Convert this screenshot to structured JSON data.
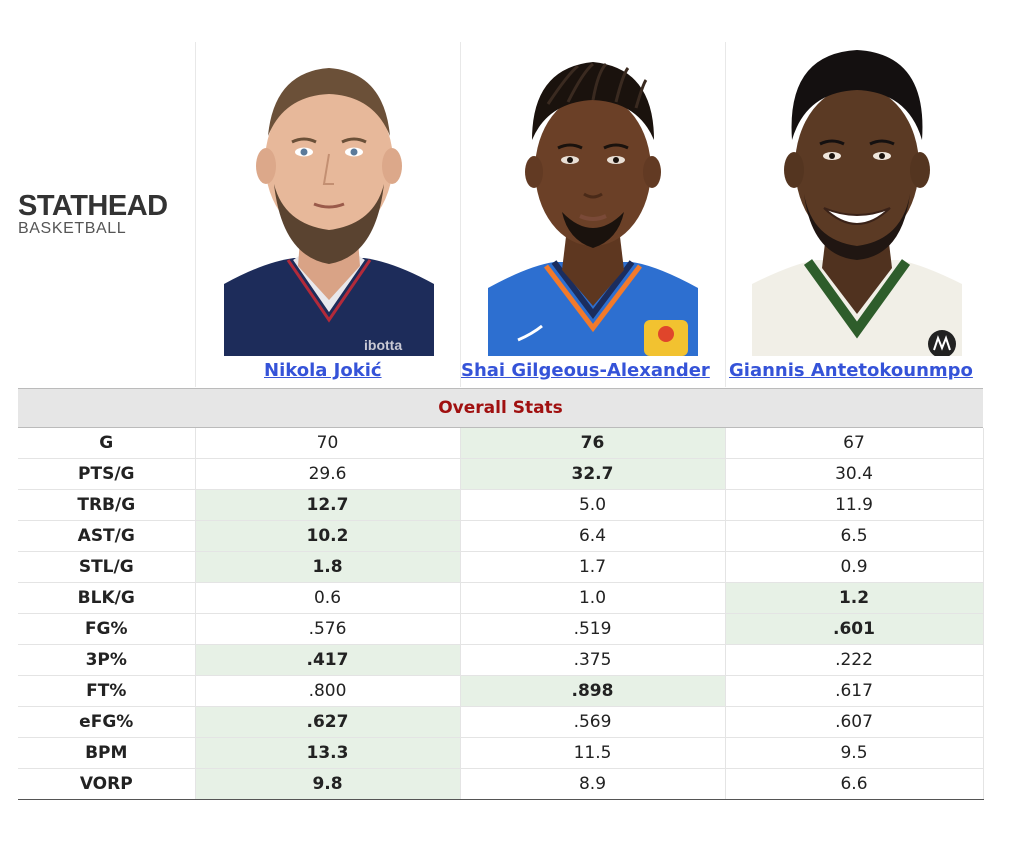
{
  "logo": {
    "top": "STATHEAD",
    "bottom": "BASKETBALL"
  },
  "players": [
    {
      "name": "Nikola Jokić",
      "jersey_text": "ibotta",
      "jersey_color": "#1d2c5a",
      "skin": "#e7b89a",
      "hair": "#5a4330"
    },
    {
      "name": "Shai Gilgeous-Alexander",
      "jersey_color": "#2d6fd0",
      "skin": "#6b4027",
      "hair": "#1a120d"
    },
    {
      "name": "Giannis Antetokounmpo",
      "jersey_color": "#f1efe7",
      "trim_color": "#2e5d2b",
      "skin": "#5b3a24",
      "hair": "#141010"
    }
  ],
  "section_title": "Overall Stats",
  "colors": {
    "link": "#3553d8",
    "section_title": "#a01010",
    "highlight": "#e7f1e6"
  },
  "rows": [
    {
      "label": "G",
      "values": [
        "70",
        "76",
        "67"
      ],
      "best": 1
    },
    {
      "label": "PTS/G",
      "values": [
        "29.6",
        "32.7",
        "30.4"
      ],
      "best": 1
    },
    {
      "label": "TRB/G",
      "values": [
        "12.7",
        "5.0",
        "11.9"
      ],
      "best": 0
    },
    {
      "label": "AST/G",
      "values": [
        "10.2",
        "6.4",
        "6.5"
      ],
      "best": 0
    },
    {
      "label": "STL/G",
      "values": [
        "1.8",
        "1.7",
        "0.9"
      ],
      "best": 0
    },
    {
      "label": "BLK/G",
      "values": [
        "0.6",
        "1.0",
        "1.2"
      ],
      "best": 2
    },
    {
      "label": "FG%",
      "values": [
        ".576",
        ".519",
        ".601"
      ],
      "best": 2
    },
    {
      "label": "3P%",
      "values": [
        ".417",
        ".375",
        ".222"
      ],
      "best": 0
    },
    {
      "label": "FT%",
      "values": [
        ".800",
        ".898",
        ".617"
      ],
      "best": 1
    },
    {
      "label": "eFG%",
      "values": [
        ".627",
        ".569",
        ".607"
      ],
      "best": 0
    },
    {
      "label": "BPM",
      "values": [
        "13.3",
        "11.5",
        "9.5"
      ],
      "best": 0
    },
    {
      "label": "VORP",
      "values": [
        "9.8",
        "8.9",
        "6.6"
      ],
      "best": 0
    }
  ]
}
